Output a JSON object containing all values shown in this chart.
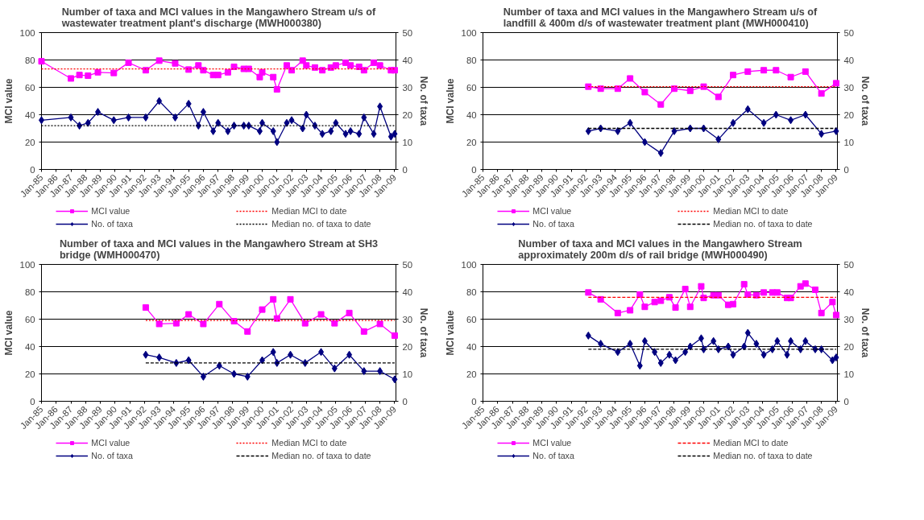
{
  "chart_data": [
    {
      "type": "line",
      "title": "Number of taxa and MCI values in the Mangawhero Stream u/s of wastewater treatment plant's discharge (MWH000380)",
      "ylabel": "MCI value",
      "y2label": "No. of taxa",
      "legend": "bottom",
      "grid": "y",
      "xlim": [
        "1985-01",
        "2009-02"
      ],
      "ylim": [
        0,
        100
      ],
      "yticks": [
        0,
        20,
        40,
        60,
        80,
        100
      ],
      "y2lim": [
        0,
        50
      ],
      "y2ticks": [
        0,
        10,
        20,
        30,
        40,
        50
      ],
      "xticks": [
        {
          "value": "1985-01",
          "label": "Jan-85"
        },
        {
          "value": "1986-01",
          "label": "Jan-86"
        },
        {
          "value": "1987-01",
          "label": "Jan-87"
        },
        {
          "value": "1988-01",
          "label": "Jan-88"
        },
        {
          "value": "1989-01",
          "label": "Jan-89"
        },
        {
          "value": "1990-01",
          "label": "Jan-90"
        },
        {
          "value": "1991-01",
          "label": "Jan-91"
        },
        {
          "value": "1992-01",
          "label": "Jan-92"
        },
        {
          "value": "1993-01",
          "label": "Jan-93"
        },
        {
          "value": "1994-01",
          "label": "Jan-94"
        },
        {
          "value": "1995-01",
          "label": "Jan-95"
        },
        {
          "value": "1996-01",
          "label": "Jan-96"
        },
        {
          "value": "1997-01",
          "label": "Jan-97"
        },
        {
          "value": "1998-01",
          "label": "Jan-98"
        },
        {
          "value": "1999-01",
          "label": "Jan-99"
        },
        {
          "value": "2000-01",
          "label": "Jan-00"
        },
        {
          "value": "2001-01",
          "label": "Jan-01"
        },
        {
          "value": "2002-01",
          "label": "Jan-02"
        },
        {
          "value": "2003-01",
          "label": "Jan-03"
        },
        {
          "value": "2004-01",
          "label": "Jan-04"
        },
        {
          "value": "2005-01",
          "label": "Jan-05"
        },
        {
          "value": "2006-01",
          "label": "Jan-06"
        },
        {
          "value": "2007-01",
          "label": "Jan-07"
        },
        {
          "value": "2008-01",
          "label": "Jan-08"
        },
        {
          "value": "2009-01",
          "label": "Jan-09"
        }
      ],
      "x": [
        "1985-01",
        "1987-01",
        "1987-08",
        "1988-03",
        "1988-11",
        "1989-12",
        "1990-12",
        "1992-02",
        "1993-01",
        "1994-02",
        "1995-01",
        "1995-09",
        "1996-01",
        "1996-09",
        "1997-01",
        "1997-09",
        "1998-02",
        "1998-10",
        "1999-02",
        "1999-11",
        "2000-01",
        "2000-10",
        "2001-01",
        "2001-09",
        "2002-01",
        "2002-10",
        "2003-01",
        "2003-08",
        "2004-02",
        "2004-09",
        "2005-01",
        "2005-09",
        "2006-01",
        "2006-08",
        "2006-12",
        "2007-08",
        "2008-01",
        "2008-10",
        "2009-01"
      ],
      "series": [
        {
          "name": "MCI value",
          "color": "#ff00ff",
          "marker": "square",
          "line_style": "solid",
          "values": [
            79,
            66.5,
            69,
            68.5,
            71,
            70.5,
            78,
            72.5,
            79.5,
            77.5,
            73,
            76,
            72.5,
            69,
            69,
            71,
            75,
            73.5,
            73.5,
            67.5,
            71,
            67.5,
            58.5,
            76,
            72.5,
            79.5,
            76,
            74.5,
            72.5,
            74.5,
            76,
            78,
            76,
            75,
            72.5,
            78,
            76,
            72.5,
            72.5
          ]
        },
        {
          "name": "Median MCI to date",
          "color": "#ff0000",
          "marker": "none",
          "line_style": "dotted",
          "x": [
            "1985-01",
            "2009-01"
          ],
          "values": [
            73.5,
            73.5
          ]
        },
        {
          "name": "No. of taxa",
          "color": "#000080",
          "marker": "diamond",
          "line_style": "solid",
          "axis": "y2",
          "values": [
            18,
            19,
            16,
            17,
            21,
            18,
            19,
            19,
            25,
            19,
            24,
            16,
            21,
            14,
            17,
            14,
            16,
            16,
            16,
            14,
            17,
            14,
            10,
            17,
            18,
            15,
            20,
            16,
            13,
            14,
            17,
            13,
            14,
            13,
            19,
            13,
            23,
            12,
            13
          ]
        },
        {
          "name": "Median no. of taxa to date",
          "color": "#000000",
          "marker": "none",
          "line_style": "dotted",
          "axis": "y2",
          "x": [
            "1985-01",
            "2009-01"
          ],
          "values": [
            16,
            16
          ]
        }
      ]
    },
    {
      "type": "line",
      "title": "Number of taxa and MCI values in the Mangawhero Stream u/s of landfill & 400m d/s of wastewater treatment plant (MWH000410)",
      "ylabel": "MCI value",
      "y2label": "No. of taxa",
      "legend": "bottom",
      "grid": "y",
      "xlim": [
        "1985-01",
        "2009-02"
      ],
      "ylim": [
        0,
        100
      ],
      "yticks": [
        0,
        20,
        40,
        60,
        80,
        100
      ],
      "y2lim": [
        0,
        50
      ],
      "y2ticks": [
        0,
        10,
        20,
        30,
        40,
        50
      ],
      "xticks": [
        {
          "value": "1985-01",
          "label": "Jan-85"
        },
        {
          "value": "1986-01",
          "label": "Jan-86"
        },
        {
          "value": "1987-01",
          "label": "Jan-87"
        },
        {
          "value": "1988-01",
          "label": "Jan-88"
        },
        {
          "value": "1989-01",
          "label": "Jan-89"
        },
        {
          "value": "1990-01",
          "label": "Jan-90"
        },
        {
          "value": "1991-01",
          "label": "Jan-91"
        },
        {
          "value": "1992-01",
          "label": "Jan-92"
        },
        {
          "value": "1993-01",
          "label": "Jan-93"
        },
        {
          "value": "1994-01",
          "label": "Jan-94"
        },
        {
          "value": "1995-01",
          "label": "Jan-95"
        },
        {
          "value": "1996-01",
          "label": "Jan-96"
        },
        {
          "value": "1997-01",
          "label": "Jan-97"
        },
        {
          "value": "1998-01",
          "label": "Jan-98"
        },
        {
          "value": "1999-01",
          "label": "Jan-99"
        },
        {
          "value": "2000-01",
          "label": "Jan-00"
        },
        {
          "value": "2001-01",
          "label": "Jan-01"
        },
        {
          "value": "2002-01",
          "label": "Jan-02"
        },
        {
          "value": "2003-01",
          "label": "Jan-03"
        },
        {
          "value": "2004-01",
          "label": "Jan-04"
        },
        {
          "value": "2005-01",
          "label": "Jan-05"
        },
        {
          "value": "2006-01",
          "label": "Jan-06"
        },
        {
          "value": "2007-01",
          "label": "Jan-07"
        },
        {
          "value": "2008-01",
          "label": "Jan-08"
        },
        {
          "value": "2009-01",
          "label": "Jan-09"
        }
      ],
      "x": [
        "1992-03",
        "1993-01",
        "1994-03",
        "1995-01",
        "1996-01",
        "1997-02",
        "1998-01",
        "1999-02",
        "2000-01",
        "2001-01",
        "2002-01",
        "2003-01",
        "2004-02",
        "2004-12",
        "2005-12",
        "2006-12",
        "2008-01",
        "2009-01"
      ],
      "series": [
        {
          "name": "MCI value",
          "color": "#ff00ff",
          "marker": "square",
          "line_style": "solid",
          "values": [
            60.5,
            59,
            59,
            66.5,
            56.5,
            47.5,
            59,
            57.5,
            60.5,
            53,
            69,
            71.5,
            72.5,
            72.5,
            67.5,
            71.5,
            55.5,
            63
          ]
        },
        {
          "name": "Median MCI to date",
          "color": "#ff0000",
          "marker": "none",
          "line_style": "dotted",
          "x": [
            "1992-03",
            "2009-01"
          ],
          "values": [
            60.5,
            60.5
          ]
        },
        {
          "name": "No. of taxa",
          "color": "#000080",
          "marker": "diamond",
          "line_style": "solid",
          "axis": "y2",
          "values": [
            14,
            15,
            14,
            17,
            10,
            6,
            14,
            15,
            15,
            11,
            17,
            22,
            17,
            20,
            18,
            20,
            13,
            14
          ]
        },
        {
          "name": "Median no. of taxa to date",
          "color": "#000000",
          "marker": "none",
          "line_style": "dashed",
          "axis": "y2",
          "x": [
            "1992-03",
            "2009-01"
          ],
          "values": [
            15,
            15
          ]
        }
      ]
    },
    {
      "type": "line",
      "title": "Number of taxa and MCI values in the Mangawhero Stream at SH3 bridge (WMH000470)",
      "ylabel": "MCI value",
      "y2label": "No. of taxa",
      "legend": "bottom",
      "grid": "y",
      "xlim": [
        "1985-01",
        "2009-02"
      ],
      "ylim": [
        0,
        100
      ],
      "yticks": [
        0,
        20,
        40,
        60,
        80,
        100
      ],
      "y2lim": [
        0,
        50
      ],
      "y2ticks": [
        0,
        10,
        20,
        30,
        40,
        50
      ],
      "xticks": [
        {
          "value": "1985-01",
          "label": "Jan-85"
        },
        {
          "value": "1986-01",
          "label": "Jan-86"
        },
        {
          "value": "1987-01",
          "label": "Jan-87"
        },
        {
          "value": "1988-01",
          "label": "Jan-88"
        },
        {
          "value": "1989-01",
          "label": "Jan-89"
        },
        {
          "value": "1990-01",
          "label": "Jan-90"
        },
        {
          "value": "1991-01",
          "label": "Jan-91"
        },
        {
          "value": "1992-01",
          "label": "Jan-92"
        },
        {
          "value": "1993-01",
          "label": "Jan-93"
        },
        {
          "value": "1994-01",
          "label": "Jan-94"
        },
        {
          "value": "1995-01",
          "label": "Jan-95"
        },
        {
          "value": "1996-01",
          "label": "Jan-96"
        },
        {
          "value": "1997-01",
          "label": "Jan-97"
        },
        {
          "value": "1998-01",
          "label": "Jan-98"
        },
        {
          "value": "1999-01",
          "label": "Jan-99"
        },
        {
          "value": "2000-01",
          "label": "Jan-00"
        },
        {
          "value": "2001-01",
          "label": "Jan-01"
        },
        {
          "value": "2002-01",
          "label": "Jan-02"
        },
        {
          "value": "2003-01",
          "label": "Jan-03"
        },
        {
          "value": "2004-01",
          "label": "Jan-04"
        },
        {
          "value": "2005-01",
          "label": "Jan-05"
        },
        {
          "value": "2006-01",
          "label": "Jan-06"
        },
        {
          "value": "2007-01",
          "label": "Jan-07"
        },
        {
          "value": "2008-01",
          "label": "Jan-08"
        },
        {
          "value": "2009-01",
          "label": "Jan-09"
        }
      ],
      "x": [
        "1992-02",
        "1993-01",
        "1994-03",
        "1995-01",
        "1996-01",
        "1997-02",
        "1998-02",
        "1999-01",
        "2000-01",
        "2000-10",
        "2001-01",
        "2001-12",
        "2002-12",
        "2004-01",
        "2004-12",
        "2005-12",
        "2006-12",
        "2008-01",
        "2009-01"
      ],
      "series": [
        {
          "name": "MCI value",
          "color": "#ff00ff",
          "marker": "square",
          "line_style": "solid",
          "values": [
            68.5,
            56.5,
            57,
            63.5,
            56.5,
            71,
            58.5,
            51,
            67,
            74.5,
            60.5,
            74.5,
            57,
            63.5,
            57,
            64.5,
            51,
            56.5,
            48
          ]
        },
        {
          "name": "Median MCI to date",
          "color": "#ff0000",
          "marker": "none",
          "line_style": "dotted",
          "x": [
            "1992-02",
            "2009-01"
          ],
          "values": [
            59,
            59
          ]
        },
        {
          "name": "No. of taxa",
          "color": "#000080",
          "marker": "diamond",
          "line_style": "solid",
          "axis": "y2",
          "values": [
            17,
            16,
            14,
            15,
            9,
            13,
            10,
            9,
            15,
            18,
            14,
            17,
            14,
            18,
            12,
            17,
            11,
            11,
            8
          ]
        },
        {
          "name": "Median no. of taxa to date",
          "color": "#000000",
          "marker": "none",
          "line_style": "dashed",
          "axis": "y2",
          "x": [
            "1992-02",
            "2009-01"
          ],
          "values": [
            14,
            14
          ]
        }
      ]
    },
    {
      "type": "line",
      "title": "Number of taxa and MCI values in the Mangawhero Stream approximately 200m d/s of rail bridge (MWH000490)",
      "ylabel": "MCI value",
      "y2label": "No. of taxa",
      "legend": "bottom",
      "grid": "y",
      "xlim": [
        "1985-01",
        "2009-02"
      ],
      "ylim": [
        0,
        100
      ],
      "yticks": [
        0,
        20,
        40,
        60,
        80,
        100
      ],
      "y2lim": [
        0,
        50
      ],
      "y2ticks": [
        0,
        10,
        20,
        30,
        40,
        50
      ],
      "xticks": [
        {
          "value": "1985-01",
          "label": "Jan-85"
        },
        {
          "value": "1986-01",
          "label": "Jan-86"
        },
        {
          "value": "1987-01",
          "label": "Jan-87"
        },
        {
          "value": "1988-01",
          "label": "Jan-88"
        },
        {
          "value": "1989-01",
          "label": "Jan-89"
        },
        {
          "value": "1990-01",
          "label": "Jan-90"
        },
        {
          "value": "1991-01",
          "label": "Jan-91"
        },
        {
          "value": "1992-01",
          "label": "Jan-92"
        },
        {
          "value": "1993-01",
          "label": "Jan-93"
        },
        {
          "value": "1994-01",
          "label": "Jan-94"
        },
        {
          "value": "1995-01",
          "label": "Jan-95"
        },
        {
          "value": "1996-01",
          "label": "Jan-96"
        },
        {
          "value": "1997-01",
          "label": "Jan-97"
        },
        {
          "value": "1998-01",
          "label": "Jan-98"
        },
        {
          "value": "1999-01",
          "label": "Jan-99"
        },
        {
          "value": "2000-01",
          "label": "Jan-00"
        },
        {
          "value": "2001-01",
          "label": "Jan-01"
        },
        {
          "value": "2002-01",
          "label": "Jan-02"
        },
        {
          "value": "2003-01",
          "label": "Jan-03"
        },
        {
          "value": "2004-01",
          "label": "Jan-04"
        },
        {
          "value": "2005-01",
          "label": "Jan-05"
        },
        {
          "value": "2006-01",
          "label": "Jan-06"
        },
        {
          "value": "2007-01",
          "label": "Jan-07"
        },
        {
          "value": "2008-01",
          "label": "Jan-08"
        },
        {
          "value": "2009-01",
          "label": "Jan-09"
        }
      ],
      "x": [
        "1992-03",
        "1993-01",
        "1994-03",
        "1995-01",
        "1995-09",
        "1996-01",
        "1996-09",
        "1997-02",
        "1997-09",
        "1998-02",
        "1998-10",
        "1999-02",
        "1999-11",
        "2000-01",
        "2000-09",
        "2001-01",
        "2001-09",
        "2002-01",
        "2002-10",
        "2003-01",
        "2003-08",
        "2004-02",
        "2004-09",
        "2005-01",
        "2005-09",
        "2005-12",
        "2006-08",
        "2006-12",
        "2007-08",
        "2008-01",
        "2008-10",
        "2009-01"
      ],
      "series": [
        {
          "name": "MCI value",
          "color": "#ff00ff",
          "marker": "square",
          "line_style": "solid",
          "values": [
            79.5,
            74.5,
            64.5,
            66.5,
            78,
            69,
            72.5,
            73.5,
            76,
            68.5,
            82,
            69,
            84,
            75.5,
            77.5,
            77.5,
            70.5,
            71,
            85.5,
            78,
            77.5,
            79.5,
            79.5,
            79.5,
            75.5,
            75.5,
            84,
            86,
            81.5,
            64.5,
            72.5,
            63
          ]
        },
        {
          "name": "Median MCI to date",
          "color": "#ff0000",
          "marker": "none",
          "line_style": "dashed",
          "x": [
            "1992-03",
            "2009-01"
          ],
          "values": [
            76,
            76
          ]
        },
        {
          "name": "No. of taxa",
          "color": "#000080",
          "marker": "diamond",
          "line_style": "solid",
          "axis": "y2",
          "values": [
            24,
            21,
            18,
            21,
            13,
            22,
            18,
            14,
            17,
            15,
            18,
            20,
            23,
            19,
            22,
            19,
            20,
            17,
            20,
            25,
            21,
            17,
            19,
            22,
            17,
            22,
            19,
            22,
            19,
            19,
            15,
            16
          ]
        },
        {
          "name": "Median no. of taxa to date",
          "color": "#000000",
          "marker": "none",
          "line_style": "dashed",
          "axis": "y2",
          "x": [
            "1992-03",
            "2009-01"
          ],
          "values": [
            19,
            19
          ]
        }
      ]
    }
  ]
}
